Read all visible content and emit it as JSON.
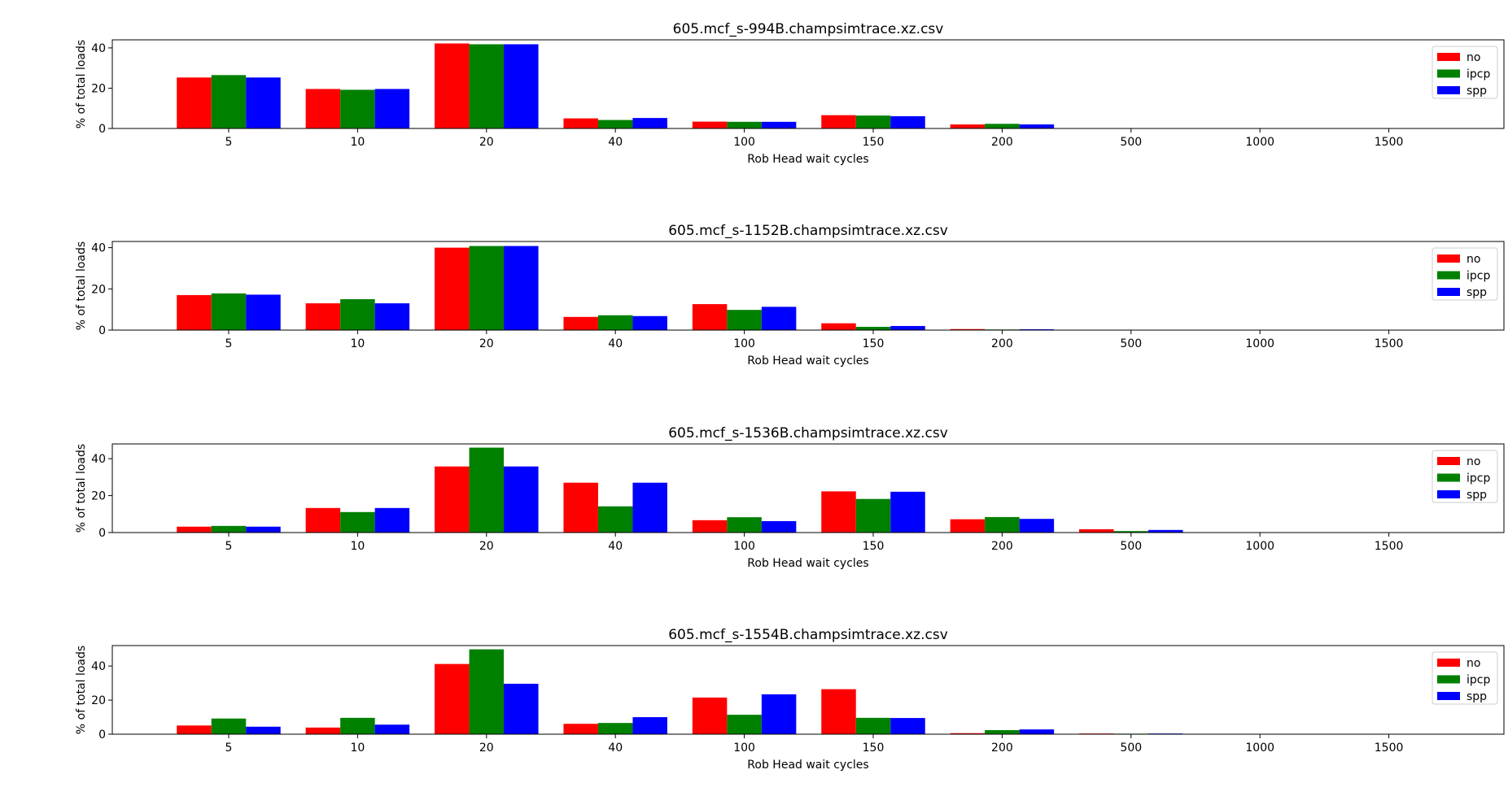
{
  "chart_data": [
    {
      "type": "bar",
      "title": "605.mcf_s-994B.champsimtrace.xz.csv",
      "xlabel": "Rob Head wait cycles",
      "ylabel": "% of total loads",
      "ylim": [
        0,
        44
      ],
      "yticks": [
        0,
        20,
        40
      ],
      "categories": [
        "5",
        "10",
        "20",
        "40",
        "100",
        "150",
        "200",
        "500",
        "1000",
        "1500"
      ],
      "legend_position": "top-right",
      "series": [
        {
          "name": "no",
          "color": "#ff0000",
          "values": [
            25.3,
            19.6,
            42.2,
            5.0,
            3.4,
            6.6,
            2.0,
            0,
            0,
            0
          ]
        },
        {
          "name": "ipcp",
          "color": "#008000",
          "values": [
            26.5,
            19.2,
            41.8,
            4.2,
            3.3,
            6.4,
            2.3,
            0,
            0,
            0
          ]
        },
        {
          "name": "spp",
          "color": "#0000ff",
          "values": [
            25.3,
            19.6,
            41.8,
            5.2,
            3.3,
            6.1,
            2.0,
            0,
            0,
            0
          ]
        }
      ]
    },
    {
      "type": "bar",
      "title": "605.mcf_s-1152B.champsimtrace.xz.csv",
      "xlabel": "Rob Head wait cycles",
      "ylabel": "% of total loads",
      "ylim": [
        0,
        43
      ],
      "yticks": [
        0,
        20,
        40
      ],
      "categories": [
        "5",
        "10",
        "20",
        "40",
        "100",
        "150",
        "200",
        "500",
        "1000",
        "1500"
      ],
      "legend_position": "top-right",
      "series": [
        {
          "name": "no",
          "color": "#ff0000",
          "values": [
            17.0,
            13.0,
            40.0,
            6.4,
            12.6,
            3.3,
            0.5,
            0,
            0,
            0
          ]
        },
        {
          "name": "ipcp",
          "color": "#008000",
          "values": [
            17.8,
            15.0,
            40.8,
            7.2,
            9.8,
            1.6,
            0.3,
            0,
            0,
            0
          ]
        },
        {
          "name": "spp",
          "color": "#0000ff",
          "values": [
            17.2,
            13.0,
            40.8,
            6.8,
            11.3,
            2.0,
            0.4,
            0,
            0,
            0
          ]
        }
      ]
    },
    {
      "type": "bar",
      "title": "605.mcf_s-1536B.champsimtrace.xz.csv",
      "xlabel": "Rob Head wait cycles",
      "ylabel": "% of total loads",
      "ylim": [
        0,
        48
      ],
      "yticks": [
        0,
        20,
        40
      ],
      "categories": [
        "5",
        "10",
        "20",
        "40",
        "100",
        "150",
        "200",
        "500",
        "1000",
        "1500"
      ],
      "legend_position": "top-right",
      "series": [
        {
          "name": "no",
          "color": "#ff0000",
          "values": [
            3.2,
            13.3,
            35.8,
            27.0,
            6.7,
            22.3,
            7.2,
            1.8,
            0,
            0
          ]
        },
        {
          "name": "ipcp",
          "color": "#008000",
          "values": [
            3.6,
            11.1,
            46.0,
            14.2,
            8.3,
            18.2,
            8.4,
            0.8,
            0,
            0
          ]
        },
        {
          "name": "spp",
          "color": "#0000ff",
          "values": [
            3.2,
            13.3,
            35.8,
            27.0,
            6.2,
            22.1,
            7.4,
            1.4,
            0,
            0
          ]
        }
      ]
    },
    {
      "type": "bar",
      "title": "605.mcf_s-1554B.champsimtrace.xz.csv",
      "xlabel": "Rob Head wait cycles",
      "ylabel": "% of total loads",
      "ylim": [
        0,
        52
      ],
      "yticks": [
        0,
        20,
        40
      ],
      "categories": [
        "5",
        "10",
        "20",
        "40",
        "100",
        "150",
        "200",
        "500",
        "1000",
        "1500"
      ],
      "legend_position": "top-right",
      "series": [
        {
          "name": "no",
          "color": "#ff0000",
          "values": [
            5.1,
            3.9,
            41.2,
            6.1,
            21.5,
            26.4,
            0.6,
            0.4,
            0,
            0
          ]
        },
        {
          "name": "ipcp",
          "color": "#008000",
          "values": [
            9.2,
            9.6,
            49.8,
            6.6,
            11.4,
            9.6,
            2.4,
            0.3,
            0,
            0
          ]
        },
        {
          "name": "spp",
          "color": "#0000ff",
          "values": [
            4.4,
            5.6,
            29.6,
            10.0,
            23.4,
            9.5,
            2.8,
            0.4,
            0,
            0
          ]
        }
      ]
    }
  ]
}
